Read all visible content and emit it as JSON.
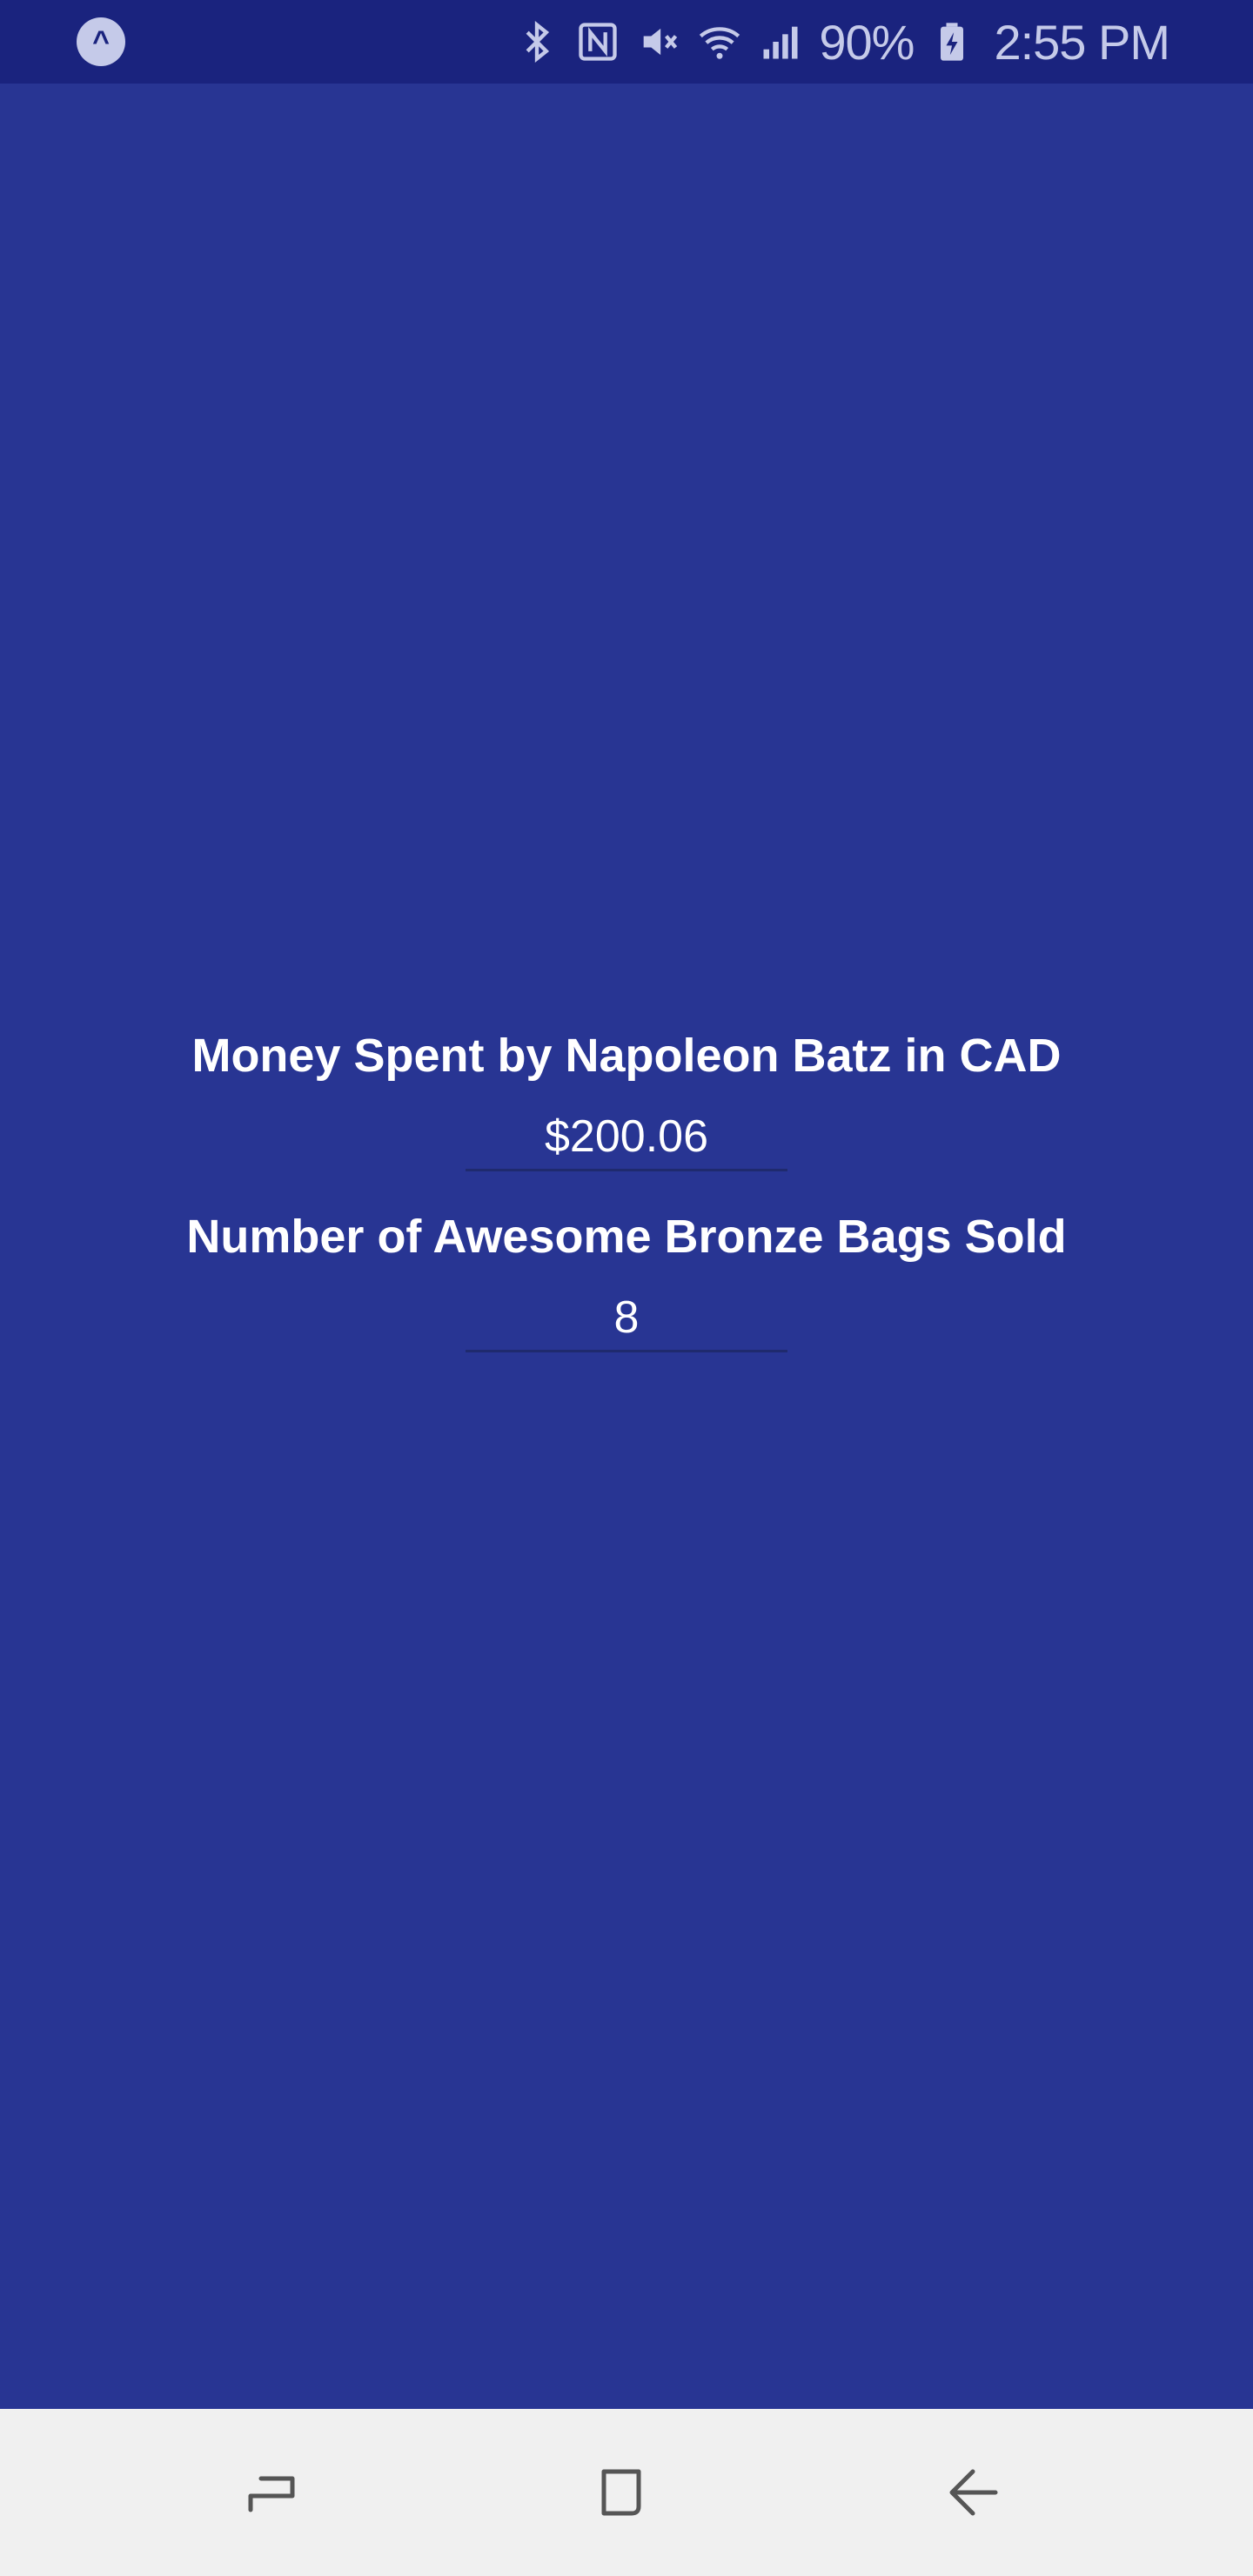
{
  "status_bar": {
    "app_badge_letter": "^",
    "battery": "90%",
    "time": "2:55 PM",
    "icons": [
      "bluetooth-icon",
      "nfc-icon",
      "mute-icon",
      "wifi-icon",
      "signal-icon",
      "battery-charging-icon"
    ]
  },
  "main": {
    "money_label": "Money Spent by Napoleon Batz in CAD",
    "money_value": "$200.06",
    "bags_label": "Number of Awesome Bronze Bags Sold",
    "bags_value": "8"
  },
  "nav_bar": {
    "buttons": [
      "recents-icon",
      "home-icon",
      "back-icon"
    ]
  },
  "colors": {
    "background": "#283593",
    "status_bar": "#1a237e",
    "nav_bar": "#f0f0f0",
    "text": "#ffffff"
  }
}
